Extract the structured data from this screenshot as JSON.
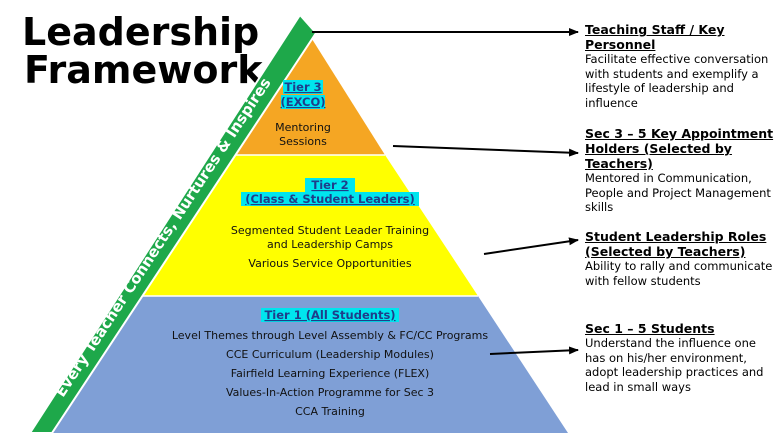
{
  "title_line1": "Leadership",
  "title_line2": "Framework",
  "band_text": "Every Teacher Connects, Nurtures & Inspires",
  "tiers": [
    {
      "heading_line1": "Tier 3",
      "heading_line2": "(EXCO)",
      "items": [
        "Mentoring",
        "Sessions"
      ],
      "color": "#f5a623"
    },
    {
      "heading_line1": "Tier 2",
      "heading_line2": "(Class & Student Leaders)",
      "items": [
        "Segmented Student Leader Training",
        "and Leadership Camps",
        "Various Service Opportunities"
      ],
      "color": "#ffff00"
    },
    {
      "heading_line1": "Tier 1 (All Students)",
      "items": [
        "Level Themes through Level Assembly & FC/CC Programs",
        "CCE Curriculum (Leadership Modules)",
        "Fairfield Learning Experience (FLEX)",
        "Values-In-Action Programme for Sec 3",
        "CCA Training"
      ],
      "color": "#7f9fd6"
    }
  ],
  "highlight_color": "#00e5ee",
  "band_color": "#1ea84a",
  "descriptions": [
    {
      "title": "Teaching Staff / Key Personnel",
      "text": "Facilitate effective conversation with students and exemplify a lifestyle of leadership and influence"
    },
    {
      "title": "Sec 3 – 5 Key Appointment Holders (Selected by Teachers)",
      "text": "Mentored in Communication, People and Project Management skills"
    },
    {
      "title": "Student Leadership Roles (Selected by Teachers)",
      "text": "Ability to rally and communicate with fellow students"
    },
    {
      "title": "Sec 1 – 5 Students",
      "text": "Understand the influence one has on his/her environment, adopt leadership practices and lead in small ways"
    }
  ]
}
